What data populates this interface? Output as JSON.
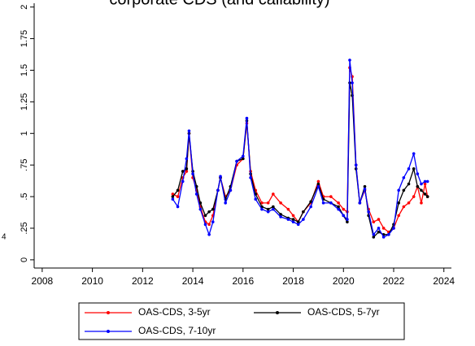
{
  "chart_data": {
    "type": "line",
    "title": "corporate CDS (and callability)",
    "annotations": [
      "4"
    ],
    "x": [
      2013.2,
      2013.4,
      2013.6,
      2013.75,
      2013.85,
      2014.0,
      2014.15,
      2014.3,
      2014.5,
      2014.65,
      2014.8,
      2015.0,
      2015.1,
      2015.3,
      2015.5,
      2015.75,
      2016.0,
      2016.15,
      2016.3,
      2016.5,
      2016.75,
      2017.0,
      2017.2,
      2017.5,
      2017.8,
      2018.0,
      2018.2,
      2018.4,
      2018.7,
      2019.0,
      2019.2,
      2019.5,
      2019.8,
      2020.0,
      2020.15,
      2020.25,
      2020.35,
      2020.5,
      2020.65,
      2020.85,
      2021.0,
      2021.2,
      2021.4,
      2021.6,
      2021.8,
      2022.0,
      2022.2,
      2022.4,
      2022.6,
      2022.8,
      2022.95,
      2023.1,
      2023.25,
      2023.35
    ],
    "series": [
      {
        "name": "OAS-CDS, 3-5yr",
        "color": "#ff0000",
        "values": [
          0.52,
          0.5,
          0.65,
          0.7,
          1.0,
          0.65,
          0.55,
          0.42,
          0.3,
          0.28,
          0.35,
          0.55,
          0.65,
          0.5,
          0.55,
          0.75,
          0.8,
          1.08,
          0.7,
          0.55,
          0.45,
          0.45,
          0.52,
          0.45,
          0.4,
          0.35,
          0.3,
          0.38,
          0.45,
          0.62,
          0.5,
          0.5,
          0.45,
          0.4,
          0.38,
          1.52,
          1.45,
          0.75,
          0.45,
          0.55,
          0.4,
          0.3,
          0.32,
          0.25,
          0.22,
          0.25,
          0.35,
          0.42,
          0.45,
          0.5,
          0.58,
          0.45,
          0.6,
          0.5
        ]
      },
      {
        "name": "OAS-CDS, 5-7yr",
        "color": "#000000",
        "values": [
          0.5,
          0.55,
          0.7,
          0.72,
          1.0,
          0.7,
          0.58,
          0.45,
          0.35,
          0.38,
          0.4,
          0.55,
          0.65,
          0.48,
          0.58,
          0.78,
          0.8,
          1.1,
          0.68,
          0.52,
          0.42,
          0.4,
          0.42,
          0.36,
          0.33,
          0.32,
          0.3,
          0.38,
          0.46,
          0.6,
          0.48,
          0.45,
          0.42,
          0.35,
          0.3,
          1.4,
          1.3,
          0.72,
          0.45,
          0.58,
          0.35,
          0.18,
          0.22,
          0.2,
          0.2,
          0.28,
          0.45,
          0.55,
          0.6,
          0.72,
          0.58,
          0.55,
          0.52,
          0.5
        ]
      },
      {
        "name": "OAS-CDS, 7-10yr",
        "color": "#0000ff",
        "values": [
          0.48,
          0.42,
          0.62,
          0.8,
          1.02,
          0.68,
          0.52,
          0.4,
          0.28,
          0.2,
          0.3,
          0.55,
          0.66,
          0.45,
          0.55,
          0.78,
          0.82,
          1.12,
          0.65,
          0.48,
          0.4,
          0.38,
          0.4,
          0.34,
          0.32,
          0.3,
          0.28,
          0.32,
          0.42,
          0.58,
          0.45,
          0.45,
          0.4,
          0.35,
          0.32,
          1.58,
          1.4,
          0.75,
          0.45,
          0.56,
          0.38,
          0.2,
          0.25,
          0.18,
          0.2,
          0.25,
          0.55,
          0.65,
          0.72,
          0.84,
          0.68,
          0.6,
          0.62,
          0.62
        ]
      }
    ],
    "xlim": [
      2007.68,
      2024.3
    ],
    "xticks": [
      2008,
      2010,
      2012,
      2014,
      2016,
      2018,
      2020,
      2022,
      2024
    ],
    "ylim": [
      -0.065,
      2.03
    ],
    "yticks": [
      0,
      {
        "value": 0.25,
        "label": ".25"
      },
      {
        "value": 0.5,
        "label": ".5"
      },
      {
        "value": 0.75,
        "label": ".75"
      },
      1,
      1.25,
      1.5,
      1.75,
      2
    ],
    "grid": false,
    "legend": "bottom"
  }
}
